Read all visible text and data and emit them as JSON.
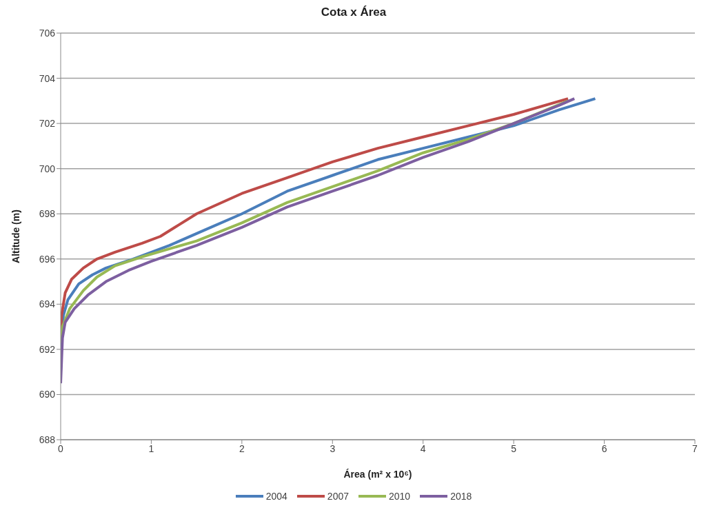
{
  "chart_data": {
    "type": "line",
    "title": "Cota x Área",
    "xlabel": "Área (m² x 10⁶)",
    "ylabel": "Altitude (m)",
    "xlim": [
      0,
      7
    ],
    "xticks": [
      0,
      1,
      2,
      3,
      4,
      5,
      6,
      7
    ],
    "ylim": [
      688,
      706
    ],
    "yticks": [
      688,
      690,
      692,
      694,
      696,
      698,
      700,
      702,
      704,
      706
    ],
    "grid": "y",
    "legend": "bottom",
    "line_style": "solid",
    "series": [
      {
        "name": "2004",
        "color": "#4a7ebb",
        "x": [
          0,
          0.01,
          0.03,
          0.08,
          0.2,
          0.35,
          0.5,
          0.8,
          1.2,
          1.6,
          2.0,
          2.5,
          3.0,
          3.5,
          4.0,
          4.5,
          5.0,
          5.5,
          5.9
        ],
        "values": [
          691,
          692.5,
          693.5,
          694.2,
          694.9,
          695.3,
          695.6,
          696.0,
          696.6,
          697.3,
          698.0,
          699.0,
          699.7,
          700.4,
          700.9,
          701.4,
          701.9,
          702.6,
          703.1
        ]
      },
      {
        "name": "2007",
        "color": "#be4b48",
        "x": [
          0,
          0.01,
          0.05,
          0.12,
          0.25,
          0.4,
          0.6,
          0.9,
          1.1,
          1.3,
          1.5,
          2.0,
          2.5,
          3.0,
          3.5,
          4.0,
          4.5,
          5.0,
          5.6
        ],
        "values": [
          692.5,
          693.5,
          694.5,
          695.1,
          695.6,
          696.0,
          696.3,
          696.7,
          697.0,
          697.5,
          698.0,
          698.9,
          699.6,
          700.3,
          700.9,
          701.4,
          701.9,
          702.4,
          703.1
        ]
      },
      {
        "name": "2010",
        "color": "#98b954",
        "x": [
          0,
          0.02,
          0.1,
          0.25,
          0.4,
          0.6,
          0.9,
          1.5,
          2.0,
          2.5,
          3.0,
          3.5,
          4.0,
          4.5,
          5.0,
          5.6
        ],
        "values": [
          692.3,
          693.0,
          693.8,
          694.6,
          695.2,
          695.7,
          696.1,
          696.8,
          697.6,
          698.5,
          699.2,
          699.9,
          700.7,
          701.3,
          702.0,
          703.0
        ]
      },
      {
        "name": "2018",
        "color": "#7d5fa0",
        "x": [
          0,
          0.01,
          0.02,
          0.05,
          0.15,
          0.3,
          0.5,
          0.75,
          1.0,
          1.5,
          2.0,
          2.5,
          3.0,
          3.5,
          4.0,
          4.5,
          5.0,
          5.5,
          5.67
        ],
        "values": [
          690.5,
          691.5,
          692.5,
          693.2,
          693.8,
          694.4,
          695.0,
          695.5,
          695.9,
          696.6,
          697.4,
          698.3,
          699.0,
          699.7,
          700.5,
          701.2,
          702.0,
          702.8,
          703.1
        ]
      }
    ]
  }
}
